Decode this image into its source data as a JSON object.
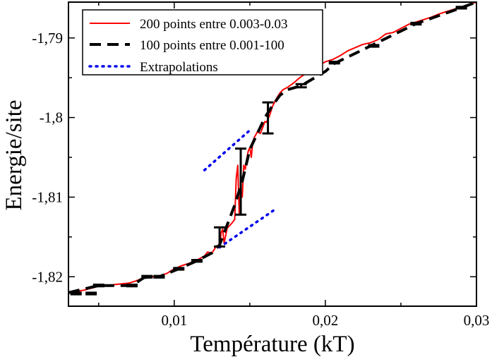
{
  "chart_data": {
    "type": "line",
    "title": "",
    "xlabel": "Température (kT)",
    "ylabel": "Energie/site",
    "xlim": [
      0.003,
      0.03
    ],
    "ylim": [
      -1.8237,
      -1.7855
    ],
    "grid": false,
    "legend_position": "top-left",
    "x_ticks": [
      {
        "value": 0.01,
        "label": "0,01"
      },
      {
        "value": 0.02,
        "label": "0,02"
      },
      {
        "value": 0.03,
        "label": "0,03"
      }
    ],
    "y_ticks": [
      {
        "value": -1.79,
        "label": "-1,79"
      },
      {
        "value": -1.8,
        "label": "-1,8"
      },
      {
        "value": -1.81,
        "label": "-1,81"
      },
      {
        "value": -1.82,
        "label": "-1,82"
      }
    ],
    "series": [
      {
        "name": "200 points entre 0.003-0.03",
        "color": "#ff0000",
        "style": "solid",
        "x": [
          0.003,
          0.004,
          0.005,
          0.006,
          0.007,
          0.0075,
          0.008,
          0.0085,
          0.009,
          0.0095,
          0.01,
          0.0105,
          0.011,
          0.0115,
          0.012,
          0.0122,
          0.0125,
          0.0128,
          0.013,
          0.0131,
          0.0132,
          0.0133,
          0.0135,
          0.0138,
          0.014,
          0.0141,
          0.0142,
          0.0143,
          0.0144,
          0.0145,
          0.0146,
          0.0147,
          0.0148,
          0.0149,
          0.015,
          0.0151,
          0.0152,
          0.0153,
          0.0155,
          0.0157,
          0.0159,
          0.016,
          0.0161,
          0.0163,
          0.0165,
          0.0168,
          0.017,
          0.0172,
          0.0175,
          0.0178,
          0.018,
          0.0183,
          0.0186,
          0.0189,
          0.0192,
          0.0196,
          0.02,
          0.0205,
          0.021,
          0.0215,
          0.022,
          0.0225,
          0.023,
          0.0235,
          0.024,
          0.0245,
          0.025,
          0.0255,
          0.026,
          0.0265,
          0.027,
          0.0275,
          0.028,
          0.0285,
          0.029,
          0.0295,
          0.03
        ],
        "y": [
          -1.822,
          -1.8217,
          -1.8212,
          -1.821,
          -1.8208,
          -1.8205,
          -1.8201,
          -1.82,
          -1.8199,
          -1.8196,
          -1.819,
          -1.8186,
          -1.8183,
          -1.8179,
          -1.8174,
          -1.8169,
          -1.817,
          -1.8161,
          -1.8163,
          -1.8145,
          -1.814,
          -1.8158,
          -1.8139,
          -1.8133,
          -1.8128,
          -1.8077,
          -1.806,
          -1.812,
          -1.809,
          -1.81,
          -1.806,
          -1.8065,
          -1.8052,
          -1.8042,
          -1.8038,
          -1.805,
          -1.803,
          -1.8025,
          -1.8018,
          -1.802,
          -1.801,
          -1.8005,
          -1.8006,
          -1.7998,
          -1.7986,
          -1.7975,
          -1.7969,
          -1.7965,
          -1.7962,
          -1.7958,
          -1.7955,
          -1.795,
          -1.7946,
          -1.7942,
          -1.7938,
          -1.7934,
          -1.793,
          -1.7927,
          -1.7922,
          -1.7916,
          -1.7912,
          -1.7908,
          -1.7906,
          -1.7902,
          -1.7895,
          -1.7893,
          -1.7888,
          -1.7883,
          -1.788,
          -1.7877,
          -1.7874,
          -1.787,
          -1.7867,
          -1.7864,
          -1.7861,
          -1.7858,
          -1.7855
        ]
      },
      {
        "name": "100 points entre 0.001-100",
        "color": "#000000",
        "style": "dashed",
        "x": [
          0.003,
          0.005,
          0.0072,
          0.008,
          0.009,
          0.0103,
          0.0115,
          0.0125,
          0.013,
          0.0135,
          0.014,
          0.0145,
          0.015,
          0.0155,
          0.016,
          0.0165,
          0.017,
          0.0175,
          0.0184,
          0.02,
          0.0206,
          0.023,
          0.026,
          0.029,
          0.03
        ],
        "y": [
          -1.822,
          -1.8211,
          -1.8211,
          -1.8201,
          -1.82,
          -1.819,
          -1.818,
          -1.817,
          -1.816,
          -1.8135,
          -1.811,
          -1.808,
          -1.804,
          -1.802,
          -1.8,
          -1.7985,
          -1.7972,
          -1.7965,
          -1.796,
          -1.7942,
          -1.7932,
          -1.791,
          -1.7882,
          -1.7862,
          -1.7855
        ]
      },
      {
        "name": "Extrapolations",
        "color": "#0000ee",
        "style": "dotted",
        "segments": [
          {
            "x": [
              0.012,
              0.015
            ],
            "y": [
              -1.8066,
              -1.8016
            ]
          },
          {
            "x": [
              0.013,
              0.0167
            ],
            "y": [
              -1.8163,
              -1.8115
            ]
          }
        ]
      }
    ],
    "error_bars": [
      {
        "x": 0.0035,
        "y": -1.8221,
        "low": -1.8222,
        "high": -1.822
      },
      {
        "x": 0.0045,
        "y": -1.8221,
        "low": -1.8222,
        "high": -1.822
      },
      {
        "x": 0.005,
        "y": -1.8211,
        "low": -1.8212,
        "high": -1.821
      },
      {
        "x": 0.0072,
        "y": -1.8211,
        "low": -1.8212,
        "high": -1.821
      },
      {
        "x": 0.0082,
        "y": -1.82,
        "low": -1.8201,
        "high": -1.8199
      },
      {
        "x": 0.009,
        "y": -1.82,
        "low": -1.8201,
        "high": -1.8199
      },
      {
        "x": 0.0103,
        "y": -1.819,
        "low": -1.8191,
        "high": -1.8189
      },
      {
        "x": 0.0115,
        "y": -1.818,
        "low": -1.8181,
        "high": -1.8179
      },
      {
        "x": 0.013,
        "y": -1.815,
        "low": -1.8162,
        "high": -1.8138
      },
      {
        "x": 0.0144,
        "y": -1.808,
        "low": -1.8122,
        "high": -1.8039
      },
      {
        "x": 0.0162,
        "y": -1.8,
        "low": -1.802,
        "high": -1.7981
      },
      {
        "x": 0.0184,
        "y": -1.796,
        "low": -1.7962,
        "high": -1.7958
      },
      {
        "x": 0.0206,
        "y": -1.7931,
        "low": -1.7932,
        "high": -1.793
      },
      {
        "x": 0.0232,
        "y": -1.791,
        "low": -1.7911,
        "high": -1.7909
      },
      {
        "x": 0.026,
        "y": -1.7882,
        "low": -1.7883,
        "high": -1.7881
      },
      {
        "x": 0.029,
        "y": -1.7862,
        "low": -1.7863,
        "high": -1.7861
      }
    ]
  }
}
